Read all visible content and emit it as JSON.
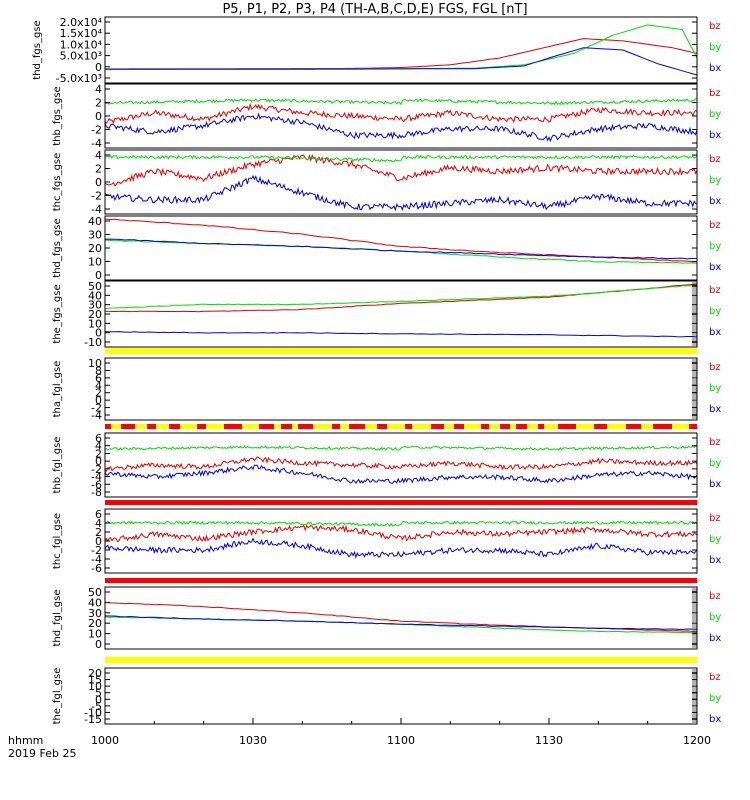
{
  "title": "P5, P1, P2, P3, P4 (TH-A,B,C,D,E) FGS, FGL [nT]",
  "colors": {
    "bz": "#e00000",
    "by": "#00dd00",
    "bx": "#0000dd",
    "yellow": "#ffff00",
    "red_bar": "#ff0000"
  },
  "footer": {
    "hhmm": "hhmm",
    "date": "2019 Feb 25"
  },
  "chart_data": [
    {
      "type": "line",
      "ylabel": "thd_fgs_gse",
      "yticks": [
        "2.0x10⁴",
        "1.5x10⁴",
        "1.0x10⁴",
        "5.0x10³",
        "0",
        "-5.0x10³"
      ],
      "ylim": [
        -7000,
        22000
      ],
      "status_bar": "none",
      "legend": [
        "bz",
        "by",
        "bx"
      ],
      "series": [
        {
          "name": "bz",
          "x": [
            1000,
            1050,
            1100,
            1110,
            1120,
            1130,
            1137,
            1145,
            1155,
            1200
          ],
          "values": [
            -800,
            -600,
            -200,
            1000,
            4000,
            9000,
            12500,
            11500,
            8500,
            6000
          ]
        },
        {
          "name": "by",
          "x": [
            1000,
            1050,
            1100,
            1115,
            1125,
            1135,
            1143,
            1150,
            1157,
            1200
          ],
          "values": [
            -900,
            -800,
            -700,
            -500,
            1000,
            6000,
            14000,
            18500,
            16500,
            4000
          ]
        },
        {
          "name": "bx",
          "x": [
            1000,
            1050,
            1100,
            1115,
            1125,
            1130,
            1137,
            1145,
            1152,
            1200
          ],
          "values": [
            -1000,
            -900,
            -800,
            -700,
            500,
            4000,
            8500,
            7500,
            1500,
            -3500
          ]
        }
      ]
    },
    {
      "type": "line",
      "ylabel": "thb_fgs_gse",
      "yticks": [
        "4",
        "2",
        "0",
        "-2",
        "-4"
      ],
      "ylim": [
        -5,
        5
      ],
      "status_bar": "none",
      "legend": [
        "bz",
        "by",
        "bx"
      ],
      "series": [
        {
          "name": "bz",
          "x": [
            1000,
            1010,
            1020,
            1030,
            1040,
            1050,
            1100,
            1110,
            1120,
            1130,
            1140,
            1150,
            1200
          ],
          "values": [
            -1,
            0.5,
            -0.5,
            1.5,
            0.5,
            0,
            -0.5,
            0.5,
            -0.5,
            -0.5,
            1,
            0.5,
            0.5
          ]
        },
        {
          "name": "by",
          "x": [
            1000,
            1030,
            1060,
            1100,
            1130,
            1200
          ],
          "values": [
            2,
            2.5,
            2,
            2.5,
            2,
            2.5
          ]
        },
        {
          "name": "bx",
          "x": [
            1000,
            1010,
            1020,
            1030,
            1040,
            1050,
            1100,
            1110,
            1120,
            1130,
            1140,
            1150,
            1200
          ],
          "values": [
            -1.5,
            -2.5,
            -1.5,
            0,
            -1,
            -3,
            -3,
            -2,
            -2,
            -3.5,
            -2,
            -1.5,
            -2.5
          ]
        }
      ]
    },
    {
      "type": "line",
      "ylabel": "thc_fgs_gse",
      "yticks": [
        "4",
        "2",
        "0",
        "-2",
        "-4"
      ],
      "ylim": [
        -4,
        5
      ],
      "status_bar": "none",
      "legend": [
        "bz",
        "by",
        "bx"
      ],
      "series": [
        {
          "name": "bz",
          "x": [
            1000,
            1010,
            1020,
            1030,
            1040,
            1050,
            1100,
            1110,
            1120,
            1130,
            1140,
            1150,
            1200
          ],
          "values": [
            0,
            2,
            1,
            3,
            4,
            3,
            1,
            2.5,
            2,
            2.5,
            2,
            2,
            2
          ]
        },
        {
          "name": "by",
          "x": [
            1000,
            1030,
            1060,
            1100,
            1130,
            1200
          ],
          "values": [
            4,
            4,
            3.5,
            4,
            4,
            4
          ]
        },
        {
          "name": "bx",
          "x": [
            1000,
            1010,
            1020,
            1030,
            1040,
            1050,
            1100,
            1110,
            1120,
            1130,
            1140,
            1150,
            1200
          ],
          "values": [
            -1.5,
            -2,
            -2,
            1,
            -1,
            -3,
            -3,
            -2.5,
            -2,
            -3,
            -1.5,
            -2.5,
            -2.5
          ]
        }
      ]
    },
    {
      "type": "line",
      "ylabel": "thd_fgs_gse",
      "yticks": [
        "40",
        "30",
        "20",
        "10",
        "0"
      ],
      "ylim": [
        0,
        42
      ],
      "status_bar": "none",
      "legend": [
        "bz",
        "by",
        "bx"
      ],
      "series": [
        {
          "name": "bz",
          "x": [
            1000,
            1020,
            1040,
            1100,
            1120,
            1140,
            1200
          ],
          "values": [
            40,
            36,
            30,
            22,
            18,
            15,
            12
          ]
        },
        {
          "name": "by",
          "x": [
            1000,
            1020,
            1040,
            1100,
            1120,
            1140,
            1200
          ],
          "values": [
            26,
            24,
            22,
            19,
            15,
            12,
            11
          ]
        },
        {
          "name": "bx",
          "x": [
            1000,
            1020,
            1040,
            1100,
            1120,
            1140,
            1200
          ],
          "values": [
            27,
            24,
            22,
            19,
            17,
            15,
            14
          ]
        }
      ]
    },
    {
      "type": "line",
      "ylabel": "the_fgs_gse",
      "yticks": [
        "50",
        "40",
        "30",
        "20",
        "10",
        "0",
        "-10"
      ],
      "ylim": [
        -15,
        50
      ],
      "status_bar": "yellow",
      "legend": [
        "bz",
        "by",
        "bx"
      ],
      "series": [
        {
          "name": "bz",
          "x": [
            1000,
            1020,
            1040,
            1100,
            1130,
            1200
          ],
          "values": [
            20,
            20,
            22,
            28,
            34,
            47
          ]
        },
        {
          "name": "by",
          "x": [
            1000,
            1020,
            1040,
            1100,
            1130,
            1200
          ],
          "values": [
            23,
            27,
            27,
            30,
            35,
            46
          ]
        },
        {
          "name": "bx",
          "x": [
            1000,
            1020,
            1040,
            1100,
            1130,
            1200
          ],
          "values": [
            0,
            -1,
            -1,
            -2,
            -3,
            -5
          ]
        }
      ]
    },
    {
      "type": "line",
      "ylabel": "tha_fgl_gse",
      "yticks": [
        "10",
        "8",
        "6",
        "4",
        "2",
        "0",
        "-2",
        "-4"
      ],
      "ylim": [
        -5,
        11
      ],
      "status_bar": "red-yellow",
      "legend": [
        "bz",
        "by",
        "bx"
      ],
      "series": []
    },
    {
      "type": "line",
      "ylabel": "thb_fgl_gse",
      "yticks": [
        "6",
        "4",
        "2",
        "0",
        "-2",
        "-4",
        "-6",
        "-8"
      ],
      "ylim": [
        -8,
        8
      ],
      "status_bar": "red",
      "legend": [
        "bz",
        "by",
        "bx"
      ],
      "series": [
        {
          "name": "bz",
          "x": [
            1000,
            1010,
            1020,
            1030,
            1040,
            1050,
            1100,
            1110,
            1120,
            1130,
            1140,
            1150,
            1200
          ],
          "values": [
            -1,
            0,
            -0.5,
            1.5,
            0.5,
            0,
            -0.5,
            0.5,
            -0.5,
            -0.5,
            1,
            0.5,
            0.5
          ]
        },
        {
          "name": "by",
          "x": [
            1000,
            1030,
            1060,
            1100,
            1130,
            1200
          ],
          "values": [
            4,
            4.5,
            4,
            4.5,
            4,
            4.5
          ]
        },
        {
          "name": "bx",
          "x": [
            1000,
            1010,
            1020,
            1030,
            1040,
            1050,
            1100,
            1110,
            1120,
            1130,
            1140,
            1150,
            1200
          ],
          "values": [
            -2,
            -3,
            -2,
            -0.5,
            -2,
            -4,
            -4,
            -3,
            -3,
            -4,
            -2.5,
            -2,
            -3
          ]
        }
      ]
    },
    {
      "type": "line",
      "ylabel": "thc_fgl_gse",
      "yticks": [
        "6",
        "4",
        "2",
        "0",
        "-2",
        "-4",
        "-6"
      ],
      "ylim": [
        -7,
        7
      ],
      "status_bar": "red",
      "legend": [
        "bz",
        "by",
        "bx"
      ],
      "series": [
        {
          "name": "bz",
          "x": [
            1000,
            1010,
            1020,
            1030,
            1040,
            1050,
            1100,
            1110,
            1120,
            1130,
            1140,
            1150,
            1200
          ],
          "values": [
            0,
            1.5,
            0.5,
            2,
            3,
            2.5,
            0.5,
            2,
            1.5,
            2,
            2.5,
            1.5,
            1.5
          ]
        },
        {
          "name": "by",
          "x": [
            1000,
            1030,
            1060,
            1100,
            1130,
            1200
          ],
          "values": [
            4,
            4,
            3.5,
            4,
            4,
            4
          ]
        },
        {
          "name": "bx",
          "x": [
            1000,
            1010,
            1020,
            1030,
            1040,
            1050,
            1100,
            1110,
            1120,
            1130,
            1140,
            1150,
            1200
          ],
          "values": [
            -1.5,
            -2,
            -2,
            0,
            -1,
            -3,
            -3,
            -2,
            -2,
            -3,
            -1,
            -2.5,
            -2.5
          ]
        }
      ]
    },
    {
      "type": "line",
      "ylabel": "thd_fgl_gse",
      "yticks": [
        "50",
        "40",
        "30",
        "20",
        "10",
        "0"
      ],
      "ylim": [
        -5,
        55
      ],
      "status_bar": "yellow",
      "legend": [
        "bz",
        "by",
        "bx"
      ],
      "series": [
        {
          "name": "bz",
          "x": [
            1000,
            1020,
            1040,
            1100,
            1120,
            1140,
            1200
          ],
          "values": [
            40,
            36,
            30,
            22,
            18,
            15,
            12
          ]
        },
        {
          "name": "by",
          "x": [
            1000,
            1020,
            1040,
            1100,
            1120,
            1140,
            1200
          ],
          "values": [
            26,
            24,
            22,
            19,
            15,
            12,
            11
          ]
        },
        {
          "name": "bx",
          "x": [
            1000,
            1020,
            1040,
            1100,
            1120,
            1140,
            1200
          ],
          "values": [
            27,
            24,
            22,
            19,
            17,
            15,
            14
          ]
        }
      ]
    },
    {
      "type": "line",
      "ylabel": "the_fgl_gse",
      "yticks": [
        "20",
        "15",
        "10",
        "5",
        "0",
        "-5",
        "-10",
        "-15"
      ],
      "ylim": [
        -16,
        22
      ],
      "status_bar": "none",
      "legend": [
        "bz",
        "by",
        "bx"
      ],
      "series": []
    }
  ],
  "xaxis": {
    "ticks": [
      1000,
      1030,
      1100,
      1130,
      1200
    ],
    "tick_labels": [
      "1000",
      "1030",
      "1100",
      "1130",
      "1200"
    ]
  }
}
